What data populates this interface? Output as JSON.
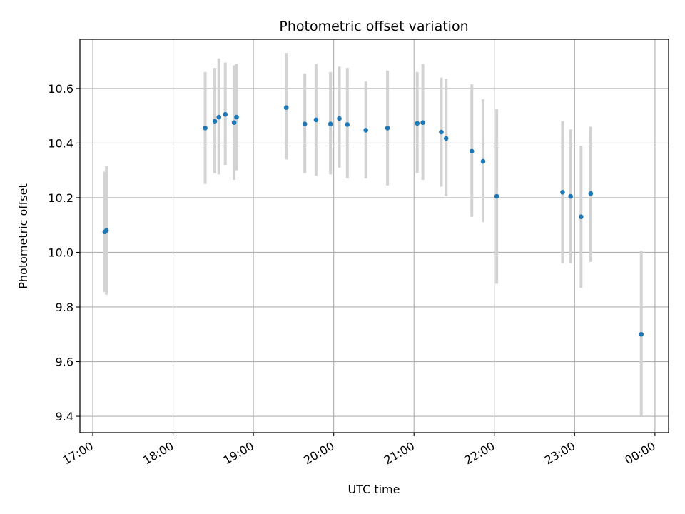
{
  "chart_data": {
    "type": "scatter",
    "title": "Photometric offset variation",
    "xlabel": "UTC time",
    "ylabel": "Photometric offset",
    "grid": true,
    "x_unit": "hours UTC (24.0 = 00:00 next day)",
    "xlim": [
      16.84,
      24.17
    ],
    "ylim": [
      9.34,
      10.78
    ],
    "x_ticks": [
      {
        "value": 17,
        "label": "17:00"
      },
      {
        "value": 18,
        "label": "18:00"
      },
      {
        "value": 19,
        "label": "19:00"
      },
      {
        "value": 20,
        "label": "20:00"
      },
      {
        "value": 21,
        "label": "21:00"
      },
      {
        "value": 22,
        "label": "22:00"
      },
      {
        "value": 23,
        "label": "23:00"
      },
      {
        "value": 24,
        "label": "00:00"
      }
    ],
    "y_ticks": [
      {
        "value": 9.4,
        "label": "9.4"
      },
      {
        "value": 9.6,
        "label": "9.6"
      },
      {
        "value": 9.8,
        "label": "9.8"
      },
      {
        "value": 10.0,
        "label": "10.0"
      },
      {
        "value": 10.2,
        "label": "10.2"
      },
      {
        "value": 10.4,
        "label": "10.4"
      },
      {
        "value": 10.6,
        "label": "10.6"
      }
    ],
    "colors": {
      "points": "#1f77b4",
      "errorbars": "#d3d3d3",
      "grid": "#b0b0b0"
    },
    "series": [
      {
        "points": [
          {
            "x": 17.15,
            "y": 10.075,
            "low": 9.855,
            "high": 10.295
          },
          {
            "x": 17.17,
            "y": 10.08,
            "low": 9.845,
            "high": 10.315
          },
          {
            "x": 18.4,
            "y": 10.455,
            "low": 10.25,
            "high": 10.66
          },
          {
            "x": 18.52,
            "y": 10.48,
            "low": 10.29,
            "high": 10.675
          },
          {
            "x": 18.57,
            "y": 10.495,
            "low": 10.285,
            "high": 10.71
          },
          {
            "x": 18.65,
            "y": 10.505,
            "low": 10.32,
            "high": 10.695
          },
          {
            "x": 18.76,
            "y": 10.475,
            "low": 10.265,
            "high": 10.685
          },
          {
            "x": 18.79,
            "y": 10.495,
            "low": 10.3,
            "high": 10.69
          },
          {
            "x": 19.41,
            "y": 10.53,
            "low": 10.34,
            "high": 10.73
          },
          {
            "x": 19.64,
            "y": 10.47,
            "low": 10.29,
            "high": 10.655
          },
          {
            "x": 19.78,
            "y": 10.485,
            "low": 10.28,
            "high": 10.69
          },
          {
            "x": 19.96,
            "y": 10.47,
            "low": 10.285,
            "high": 10.66
          },
          {
            "x": 20.07,
            "y": 10.49,
            "low": 10.31,
            "high": 10.68
          },
          {
            "x": 20.17,
            "y": 10.468,
            "low": 10.27,
            "high": 10.675
          },
          {
            "x": 20.4,
            "y": 10.447,
            "low": 10.27,
            "high": 10.625
          },
          {
            "x": 20.67,
            "y": 10.455,
            "low": 10.245,
            "high": 10.665
          },
          {
            "x": 21.04,
            "y": 10.472,
            "low": 10.29,
            "high": 10.66
          },
          {
            "x": 21.11,
            "y": 10.475,
            "low": 10.265,
            "high": 10.69
          },
          {
            "x": 21.34,
            "y": 10.44,
            "low": 10.24,
            "high": 10.64
          },
          {
            "x": 21.4,
            "y": 10.417,
            "low": 10.205,
            "high": 10.635
          },
          {
            "x": 21.72,
            "y": 10.37,
            "low": 10.13,
            "high": 10.615
          },
          {
            "x": 21.86,
            "y": 10.333,
            "low": 10.11,
            "high": 10.56
          },
          {
            "x": 22.03,
            "y": 10.205,
            "low": 9.885,
            "high": 10.525
          },
          {
            "x": 22.85,
            "y": 10.22,
            "low": 9.96,
            "high": 10.48
          },
          {
            "x": 22.95,
            "y": 10.205,
            "low": 9.96,
            "high": 10.45
          },
          {
            "x": 23.08,
            "y": 10.13,
            "low": 9.87,
            "high": 10.39
          },
          {
            "x": 23.2,
            "y": 10.215,
            "low": 9.965,
            "high": 10.46
          },
          {
            "x": 23.83,
            "y": 9.7,
            "low": 9.4,
            "high": 10.005
          }
        ]
      }
    ]
  }
}
